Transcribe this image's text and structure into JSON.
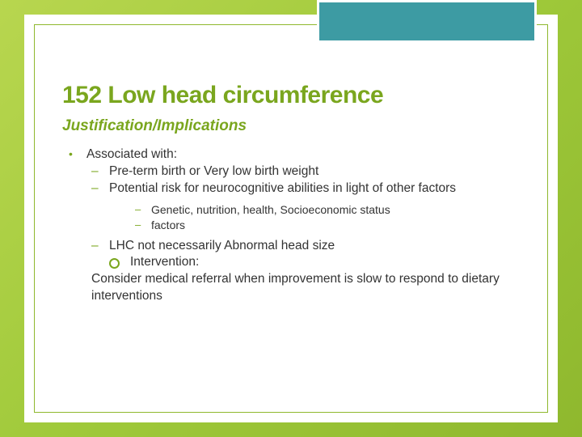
{
  "slide": {
    "title": "152 Low head circumference",
    "subtitle": "Justification/Implications",
    "colors": {
      "background_gradient": [
        "#b8d64f",
        "#9fc93a",
        "#8fb82e"
      ],
      "accent_box": "#3d9ba3",
      "accent_border": "#ffffff",
      "heading": "#7aa61e",
      "bullet": "#7aa61e",
      "body_text": "#333333",
      "frame_border": "#8fb82e"
    },
    "typography": {
      "title_fontsize": 30,
      "subtitle_fontsize": 19,
      "body_fontsize": 15.5,
      "lvl3_fontsize": 14,
      "font_family": "Century Gothic"
    },
    "bullets": {
      "lvl1_a": "Associated with:",
      "lvl2_a": "Pre-term birth or Very low birth weight",
      "lvl2_b": "Potential risk for neurocognitive abilities in light of other factors",
      "lvl3_a": "Genetic, nutrition, health,  Socioeconomic status",
      "lvl3_b": "factors",
      "lvl2_c": "LHC not necessarily Abnormal head size",
      "intervention": "Intervention:",
      "plain_a": "Consider medical referral when improvement is slow to respond to dietary interventions"
    }
  }
}
